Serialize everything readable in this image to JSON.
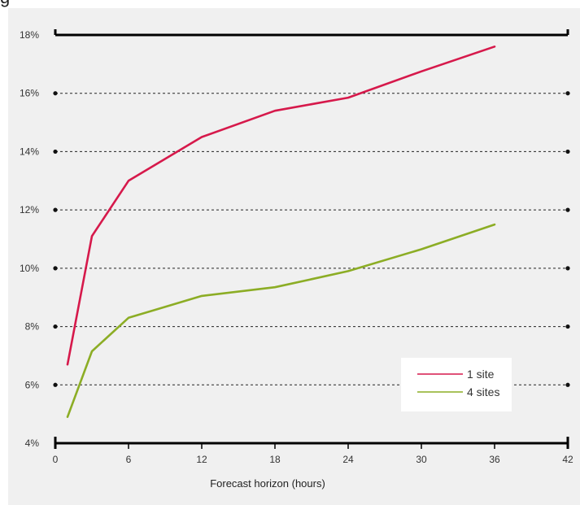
{
  "header": {
    "fragment_text": "g"
  },
  "chart_data": {
    "type": "line",
    "title": "",
    "xlabel": "Forecast horizon (hours)",
    "ylabel": "",
    "xlim": [
      0,
      42
    ],
    "ylim": [
      4,
      18
    ],
    "x_ticks": [
      0,
      6,
      12,
      18,
      24,
      30,
      36,
      42
    ],
    "y_ticks": [
      4,
      6,
      8,
      10,
      12,
      14,
      16,
      18
    ],
    "y_tick_suffix": "%",
    "grid": "horizontal-dashed",
    "legend_position": "bottom-right",
    "series": [
      {
        "name": "1 site",
        "color": "#d6194b",
        "x": [
          1,
          3,
          6,
          12,
          18,
          24,
          30,
          36
        ],
        "values": [
          6.7,
          11.1,
          13.0,
          14.5,
          15.4,
          15.85,
          16.75,
          17.6
        ]
      },
      {
        "name": "4 sites",
        "color": "#8cad25",
        "x": [
          1,
          3,
          6,
          12,
          18,
          24,
          30,
          36
        ],
        "values": [
          4.9,
          7.15,
          8.3,
          9.05,
          9.35,
          9.9,
          10.65,
          11.5
        ]
      }
    ]
  }
}
